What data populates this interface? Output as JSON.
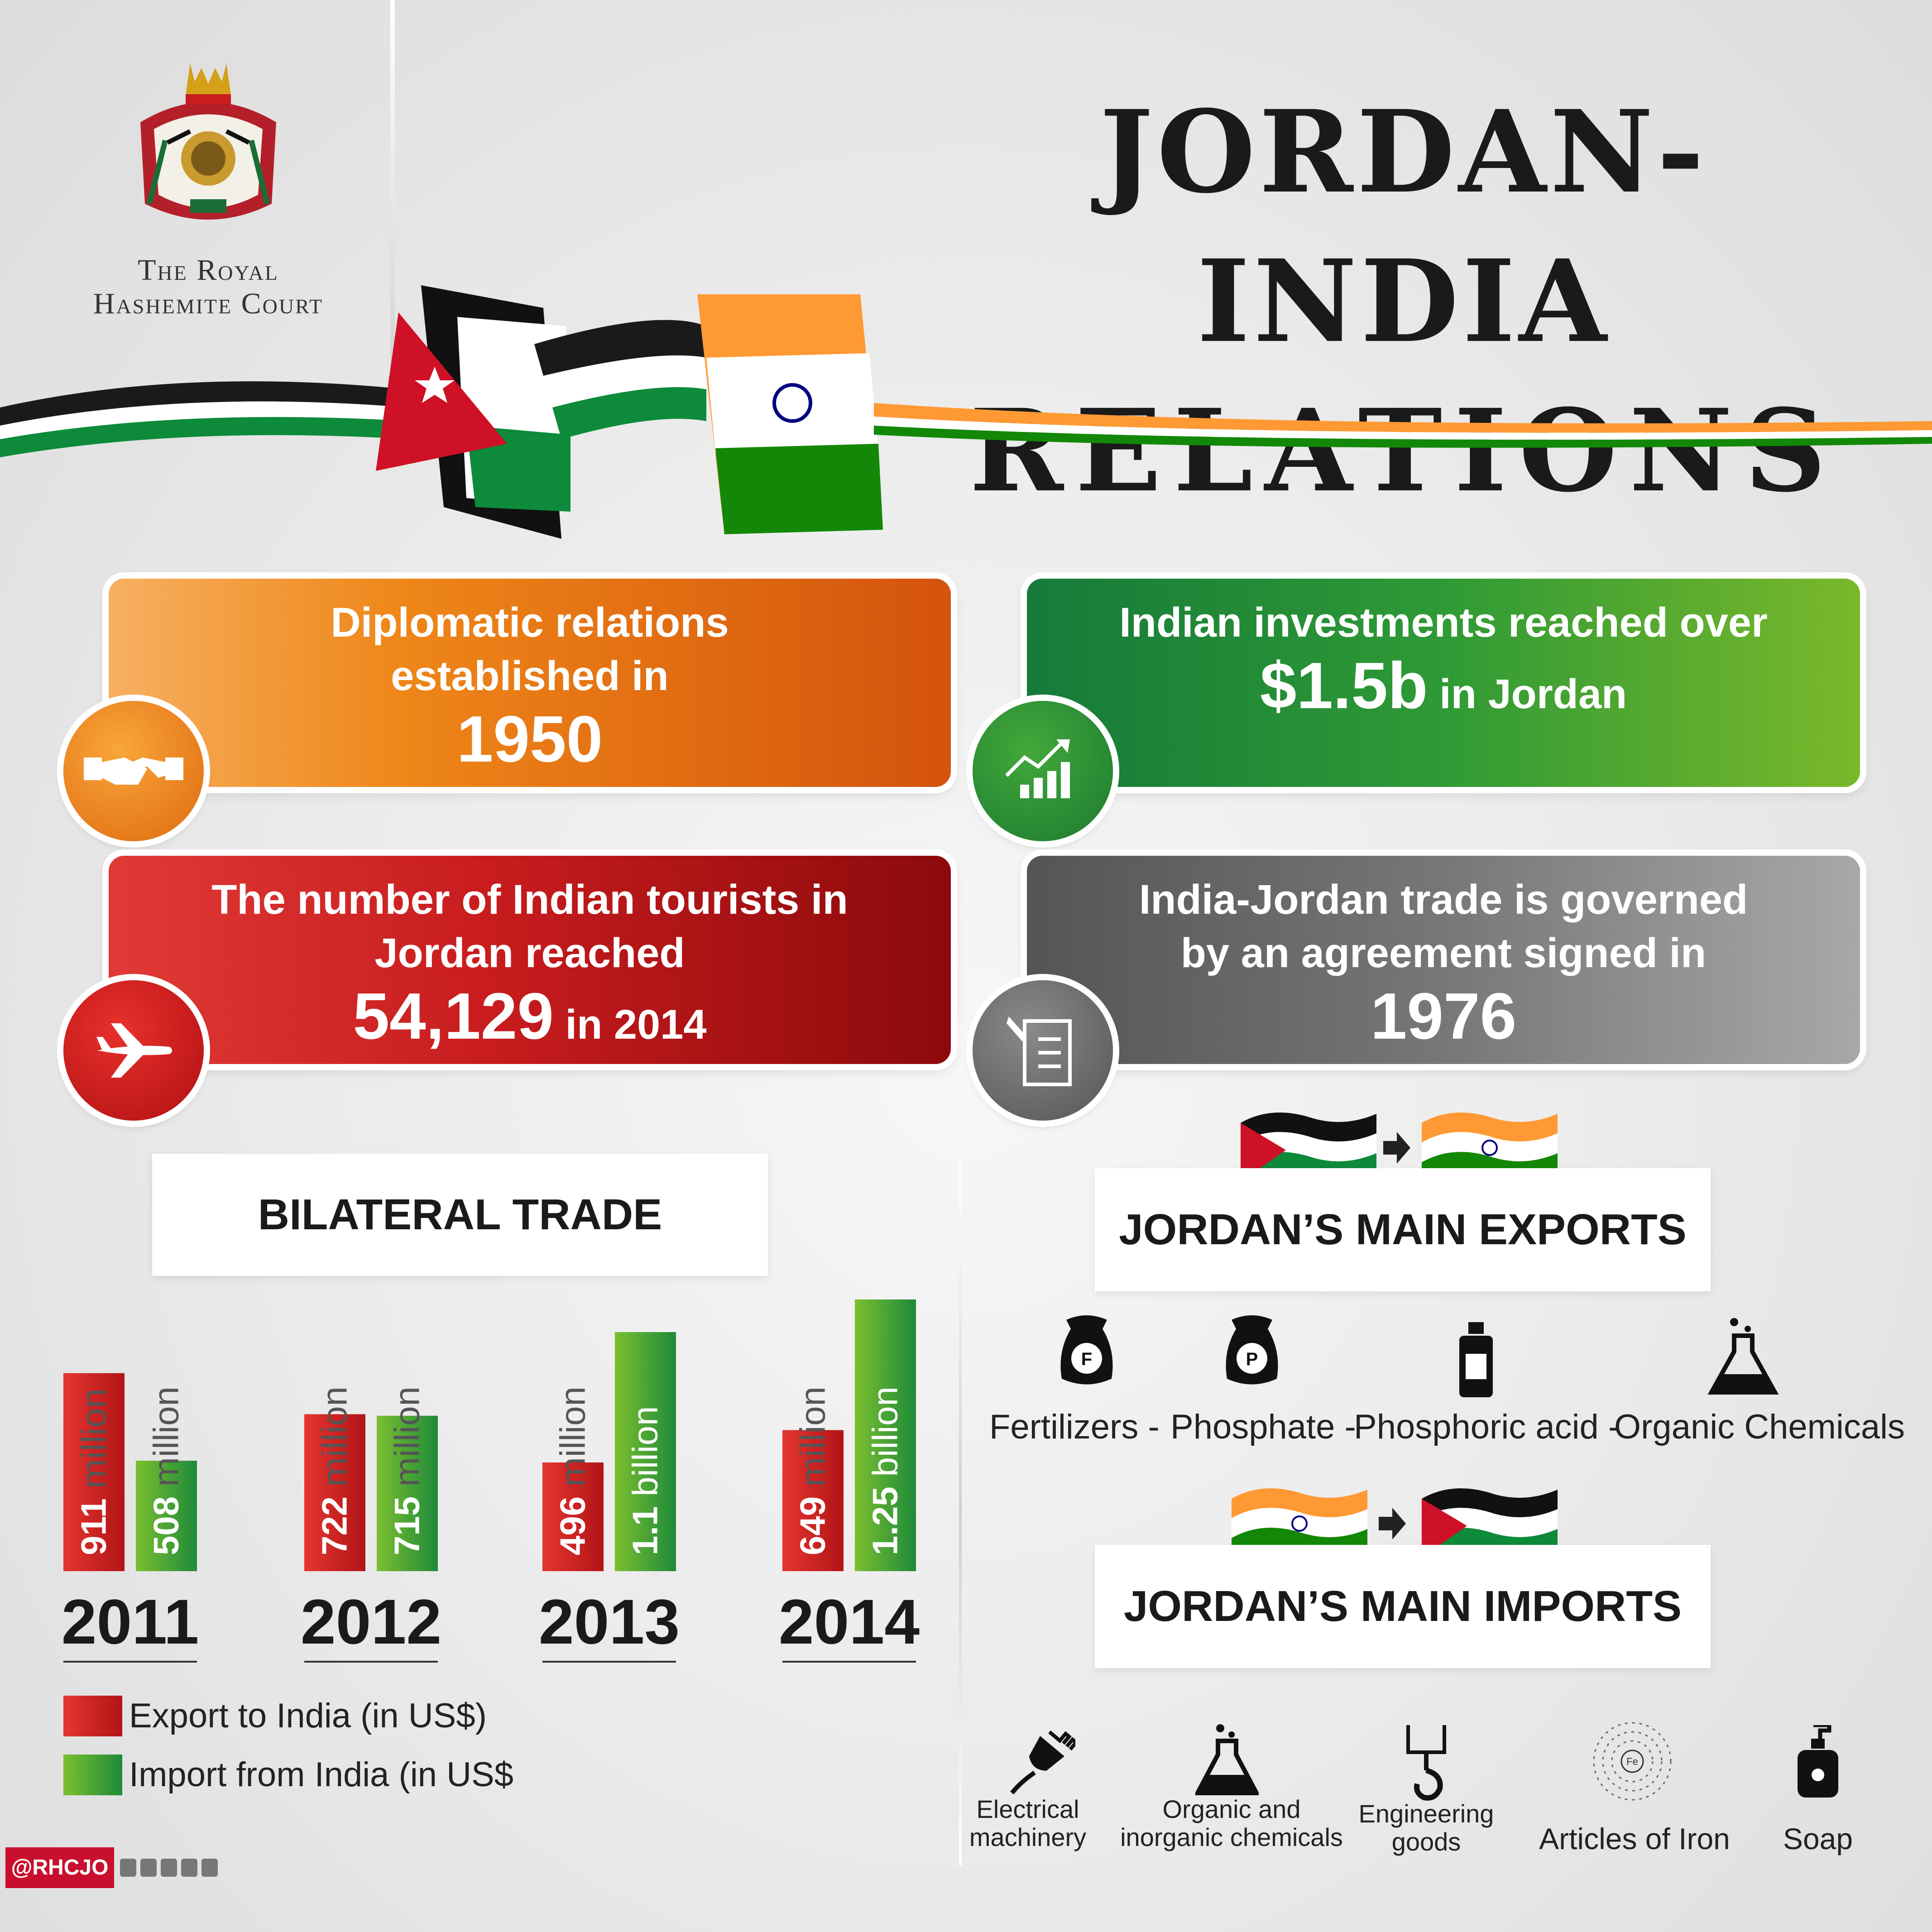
{
  "header": {
    "logo_line1": "The Royal",
    "logo_line2": "Hashemite Court",
    "title_line1": "JORDAN-INDIA",
    "title_line2": "RELATIONS"
  },
  "facts": {
    "diplomatic": {
      "line1": "Diplomatic relations",
      "line2": "established in",
      "year": "1950"
    },
    "investment": {
      "line1": "Indian investments reached over",
      "amount": "$1.5b",
      "suffix": " in Jordan"
    },
    "tourists": {
      "line1": "The number of Indian tourists in",
      "line2": "Jordan reached",
      "count": "54,129",
      "suffix": " in 2014"
    },
    "trade_agreement": {
      "line1": "India-Jordan trade is governed",
      "line2": "by an agreement signed in",
      "year": "1976"
    }
  },
  "bilateral": {
    "heading": "BILATERAL TRADE",
    "legend_export": "Export to India (in US$)",
    "legend_import": "Import from India (in US$",
    "export_color": "#c81c1e",
    "import_color": "#2f9a35"
  },
  "chart_data": {
    "type": "bar",
    "title": "BILATERAL TRADE",
    "categories": [
      "2011",
      "2012",
      "2013",
      "2014"
    ],
    "series": [
      {
        "name": "Export to India (in US$)",
        "values": [
          911,
          722,
          496,
          649
        ],
        "labels": [
          "911 million",
          "722 million",
          "496 million",
          "649 million"
        ]
      },
      {
        "name": "Import from India (in US$",
        "values": [
          508,
          715,
          1100,
          1250
        ],
        "labels": [
          "508 million",
          "715 million",
          "1.1 billion",
          "1.25 billion"
        ]
      }
    ],
    "unit": "million US$"
  },
  "exports": {
    "heading": "JORDAN’S MAIN EXPORTS",
    "items": [
      {
        "label": "Fertilizers -",
        "icon": "fertilizer-sack-icon"
      },
      {
        "label": "Phosphate -",
        "icon": "phosphate-sack-icon"
      },
      {
        "label": "Phosphoric acid -",
        "icon": "acid-bottle-icon"
      },
      {
        "label": "Organic Chemicals",
        "icon": "flask-icon"
      }
    ]
  },
  "imports": {
    "heading": "JORDAN’S MAIN IMPORTS",
    "items": [
      {
        "line1": "Electrical",
        "line2": "machinery",
        "icon": "plug-icon"
      },
      {
        "line1": "Organic and",
        "line2": "inorganic chemicals",
        "icon": "beaker-icon"
      },
      {
        "line1": "Engineering",
        "line2": "goods",
        "icon": "crane-hook-icon"
      },
      {
        "line1": "Articles of Iron",
        "line2": "",
        "icon": "iron-atom-icon",
        "atom_symbol": "Fe"
      },
      {
        "line1": "Soap",
        "line2": "",
        "icon": "soap-dispenser-icon"
      }
    ]
  },
  "footer": {
    "handle": "@RHCJO"
  },
  "colors": {
    "jordan_red": "#ce1126",
    "jordan_green": "#007a3d",
    "india_saffron": "#ff9933",
    "india_green": "#138808",
    "chakra_blue": "#000080"
  }
}
